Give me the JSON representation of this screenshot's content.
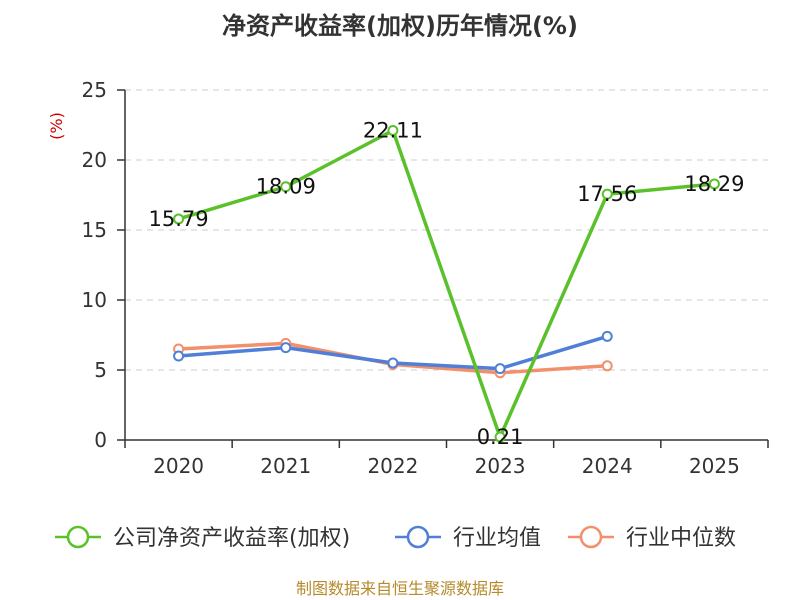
{
  "chart_data": {
    "type": "line",
    "title": "净资产收益率(加权)历年情况(%)",
    "ylabel": "(%)",
    "categories": [
      "2020",
      "2021",
      "2022",
      "2023",
      "2024",
      "2025"
    ],
    "ylim": [
      0,
      25
    ],
    "yticks": [
      0,
      5,
      10,
      15,
      20,
      25
    ],
    "grid": true,
    "legend_position": "bottom",
    "series": [
      {
        "name": "公司净资产收益率(加权)",
        "color": "#5ac12a",
        "values": [
          15.79,
          18.09,
          22.11,
          0.21,
          17.56,
          18.29
        ],
        "labels": [
          "15.79",
          "18.09",
          "22.11",
          "0.21",
          "17.56",
          "18.29"
        ]
      },
      {
        "name": "行业均值",
        "color": "#4f7fd6",
        "values": [
          6.0,
          6.6,
          5.5,
          5.1,
          7.4,
          null
        ]
      },
      {
        "name": "行业中位数",
        "color": "#f2906b",
        "values": [
          6.5,
          6.9,
          5.4,
          4.8,
          5.3,
          null
        ]
      }
    ]
  },
  "footer": "制图数据来自恒生聚源数据库"
}
